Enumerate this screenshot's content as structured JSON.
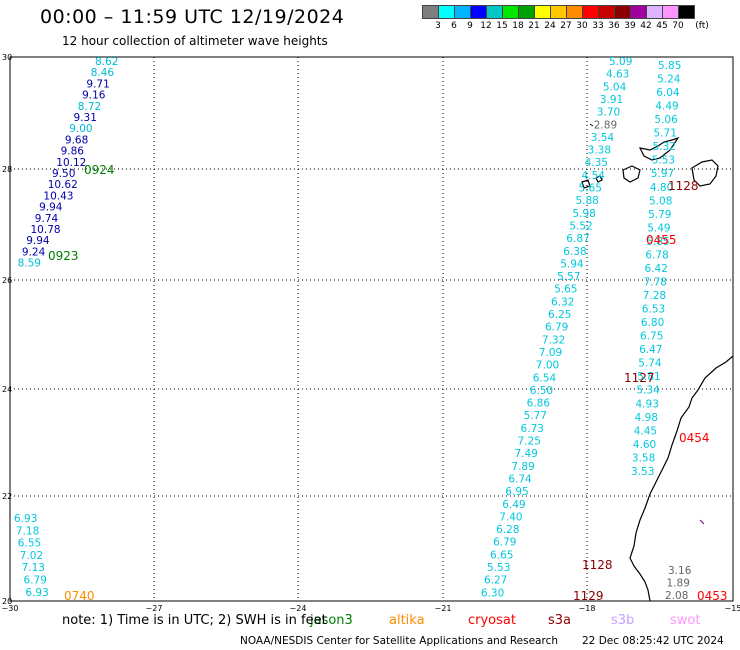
{
  "header": {
    "title": "00:00 – 11:59 UTC 12/19/2024",
    "subtitle": "12 hour collection of altimeter wave heights"
  },
  "legend": {
    "unit": "(ft)",
    "colors": [
      "#7f7f7f",
      "#00ffff",
      "#00b4ff",
      "#0000ff",
      "#00c8c8",
      "#00e600",
      "#00a000",
      "#ffff00",
      "#ffc800",
      "#ff8c00",
      "#ff0000",
      "#c80000",
      "#8b0000",
      "#a000a0",
      "#dcb4ff",
      "#ff96ff",
      "#000000"
    ],
    "labels": [
      "3",
      "6",
      "9",
      "12",
      "15",
      "18",
      "21",
      "24",
      "27",
      "30",
      "33",
      "36",
      "39",
      "42",
      "45",
      "70"
    ]
  },
  "map": {
    "lat_ticks": [
      "30",
      "28",
      "26",
      "24",
      "22",
      "20"
    ],
    "lon_ticks": [
      "−30",
      "−27",
      "−24",
      "−21",
      "−18",
      "−15"
    ],
    "coastline_color": "#000000",
    "grid_style": "dotted"
  },
  "tracks": [
    {
      "color": "#0000aa",
      "points": [
        {
          "t": "8.62",
          "c": "#00bcd4"
        },
        {
          "t": "8.46",
          "c": "#00bcd4"
        },
        {
          "t": "9.71"
        },
        {
          "t": "9.16"
        },
        {
          "t": "8.72",
          "c": "#00bcd4"
        },
        {
          "t": "9.31"
        },
        {
          "t": "9.00",
          "c": "#00bcd4"
        },
        {
          "t": "9.68"
        },
        {
          "t": "9.86"
        },
        {
          "t": "10.12"
        },
        {
          "t": "9.50"
        },
        {
          "t": "10.62"
        },
        {
          "t": "10.43"
        },
        {
          "t": "9.94"
        },
        {
          "t": "9.74"
        },
        {
          "t": "10.78"
        },
        {
          "t": "9.94"
        },
        {
          "t": "9.24"
        },
        {
          "t": "8.59",
          "c": "#00bcd4"
        }
      ]
    },
    {
      "color": "#00c8dc",
      "points": [
        {
          "t": "5.09"
        },
        {
          "t": "4.63"
        },
        {
          "t": "5.04"
        },
        {
          "t": "3.91"
        },
        {
          "t": "3.70"
        },
        {
          "t": "2.89",
          "c": "#666666"
        },
        {
          "t": "3.54"
        },
        {
          "t": "3.38"
        },
        {
          "t": "4.35"
        },
        {
          "t": "4.54"
        },
        {
          "t": "5.65"
        },
        {
          "t": "5.88"
        },
        {
          "t": "5.98"
        },
        {
          "t": "5.52"
        },
        {
          "t": "6.87"
        },
        {
          "t": "6.38"
        },
        {
          "t": "5.94"
        },
        {
          "t": "5.57"
        },
        {
          "t": "5.65"
        },
        {
          "t": "6.32"
        },
        {
          "t": "6.25"
        },
        {
          "t": "6.79"
        },
        {
          "t": "7.32"
        },
        {
          "t": "7.09"
        },
        {
          "t": "7.00"
        },
        {
          "t": "6.54"
        },
        {
          "t": "6.50"
        },
        {
          "t": "6.86"
        },
        {
          "t": "5.77"
        },
        {
          "t": "6.73"
        },
        {
          "t": "7.25"
        },
        {
          "t": "7.49"
        },
        {
          "t": "7.89"
        },
        {
          "t": "6.74"
        },
        {
          "t": "6.95"
        },
        {
          "t": "6.49"
        },
        {
          "t": "7.40"
        },
        {
          "t": "6.28"
        },
        {
          "t": "6.79"
        },
        {
          "t": "6.65"
        },
        {
          "t": "5.53"
        },
        {
          "t": "6.27"
        },
        {
          "t": "6.30"
        }
      ]
    },
    {
      "color": "#00c8dc",
      "points": [
        {
          "t": "5.85"
        },
        {
          "t": "5.24"
        },
        {
          "t": "6.04"
        },
        {
          "t": "4.49"
        },
        {
          "t": "5.06"
        },
        {
          "t": "5.71"
        },
        {
          "t": "5.32"
        },
        {
          "t": "5.53"
        },
        {
          "t": "5.97"
        },
        {
          "t": "4.80"
        },
        {
          "t": "5.08"
        },
        {
          "t": "5.79"
        },
        {
          "t": "5.49"
        },
        {
          "t": "5.85"
        },
        {
          "t": "6.78"
        },
        {
          "t": "6.42"
        },
        {
          "t": "7.78"
        },
        {
          "t": "7.28"
        },
        {
          "t": "6.53"
        },
        {
          "t": "6.80"
        },
        {
          "t": "6.75"
        },
        {
          "t": "6.47"
        },
        {
          "t": "5.74"
        },
        {
          "t": "5.81"
        },
        {
          "t": "5.34"
        },
        {
          "t": "4.93"
        },
        {
          "t": "4.98"
        },
        {
          "t": "4.45"
        },
        {
          "t": "4.60"
        },
        {
          "t": "3.58"
        },
        {
          "t": "3.53"
        }
      ]
    },
    {
      "color": "#00c8dc",
      "points": [
        {
          "t": "6.93"
        },
        {
          "t": "7.18"
        },
        {
          "t": "6.55"
        },
        {
          "t": "7.02"
        },
        {
          "t": "7.13"
        },
        {
          "t": "6.79"
        },
        {
          "t": "6.93"
        }
      ]
    },
    {
      "color": "#666666",
      "points": [
        {
          "t": "3.16"
        },
        {
          "t": "1.89"
        },
        {
          "t": "2.08"
        }
      ]
    }
  ],
  "times": [
    {
      "t": "0924",
      "c": "#008000"
    },
    {
      "t": "0923",
      "c": "#008000"
    },
    {
      "t": "1128",
      "c": "#8b0000"
    },
    {
      "t": "0455",
      "c": "#ff0000"
    },
    {
      "t": "1127",
      "c": "#8b0000"
    },
    {
      "t": "0454",
      "c": "#ff0000"
    },
    {
      "t": "1128",
      "c": "#8b0000"
    },
    {
      "t": "1129",
      "c": "#8b0000"
    },
    {
      "t": "0740",
      "c": "#ff8c00"
    },
    {
      "t": "0453",
      "c": "#ff0000"
    }
  ],
  "note": "note: 1) Time is in UTC; 2) SWH is in feet",
  "sources": [
    {
      "t": "jason3",
      "c": "#008000"
    },
    {
      "t": "altika",
      "c": "#ff8c00"
    },
    {
      "t": "cryosat",
      "c": "#ff0000"
    },
    {
      "t": "s3a",
      "c": "#8b0000"
    },
    {
      "t": "s3b",
      "c": "#c8a0ff"
    },
    {
      "t": "swot",
      "c": "#ff96ff"
    }
  ],
  "footer": {
    "credit": "NOAA/NESDIS Center for Satellite Applications and Research",
    "generated": "22 Dec 08:25:42 UTC 2024"
  }
}
